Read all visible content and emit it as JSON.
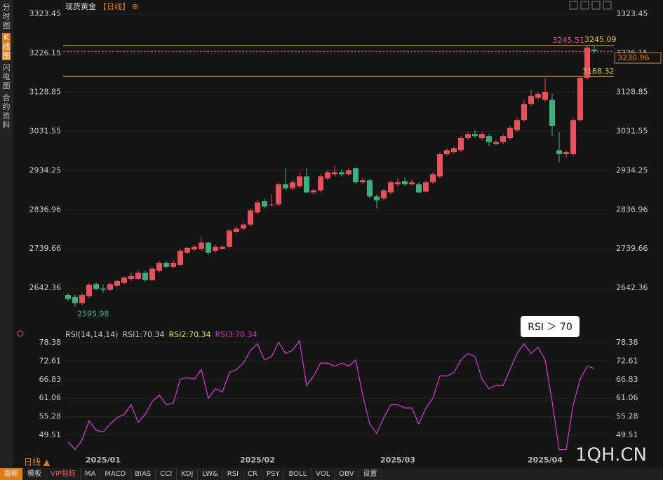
{
  "header": {
    "title": "现货黄金",
    "period": "【日线】",
    "icon": "⊕"
  },
  "sidebar": [
    "分时图",
    "K线图",
    "闪电图",
    "合约资料"
  ],
  "chart_data": [
    {
      "type": "candlestick",
      "categories": [
        null,
        null,
        null,
        null,
        null,
        "2025/01",
        null,
        null,
        null,
        null,
        null,
        null,
        null,
        null,
        null,
        null,
        null,
        null,
        null,
        null,
        null,
        null,
        null,
        null,
        null,
        null,
        null,
        "2025/02",
        null,
        null,
        null,
        null,
        null,
        null,
        null,
        null,
        null,
        null,
        null,
        null,
        null,
        null,
        null,
        null,
        null,
        null,
        null,
        "2025/03",
        null,
        null,
        null,
        null,
        null,
        null,
        null,
        null,
        null,
        null,
        null,
        null,
        null,
        null,
        null,
        null,
        null,
        null,
        null,
        null,
        "2025/04",
        null,
        null,
        null,
        null,
        null,
        null,
        null
      ],
      "open": [
        2625,
        2620,
        2605,
        2622,
        2652,
        2641,
        2638,
        2648,
        2655,
        2665,
        2665,
        2680,
        2662,
        2685,
        2705,
        2695,
        2700,
        2730,
        2738,
        2740,
        2755,
        2735,
        2740,
        2745,
        2782,
        2790,
        2800,
        2830,
        2858,
        2848,
        2850,
        2900,
        2890,
        2895,
        2920,
        2880,
        2885,
        2915,
        2925,
        2930,
        2925,
        2940,
        2905,
        2910,
        2870,
        2865,
        2880,
        2900,
        2908,
        2900,
        2900,
        2882,
        2905,
        2920,
        2975,
        2980,
        2985,
        3015,
        3025,
        3015,
        3020,
        3000,
        3005,
        3015,
        3035,
        3060,
        3100,
        3115,
        3110,
        3110,
        2985,
        2975,
        2975,
        3060,
        3165,
        3235
      ],
      "high": [
        2630,
        2625,
        2630,
        2655,
        2656,
        2650,
        2656,
        2663,
        2672,
        2680,
        2685,
        2685,
        2695,
        2710,
        2710,
        2712,
        2740,
        2745,
        2750,
        2770,
        2758,
        2750,
        2748,
        2790,
        2795,
        2805,
        2840,
        2862,
        2865,
        2875,
        2905,
        2940,
        2910,
        2930,
        2940,
        2890,
        2925,
        2935,
        2945,
        2938,
        2942,
        2942,
        2915,
        2915,
        2875,
        2890,
        2910,
        2915,
        2918,
        2912,
        2905,
        2910,
        2930,
        2980,
        2990,
        2995,
        3020,
        3030,
        3035,
        3030,
        3025,
        3010,
        3025,
        3045,
        3065,
        3110,
        3135,
        3130,
        3165,
        3125,
        3030,
        2985,
        3065,
        3168,
        3245.51,
        3245
      ],
      "low": [
        2610,
        2595.98,
        2600,
        2618,
        2636,
        2630,
        2635,
        2645,
        2652,
        2660,
        2662,
        2658,
        2660,
        2680,
        2690,
        2692,
        2698,
        2728,
        2735,
        2735,
        2725,
        2730,
        2738,
        2742,
        2778,
        2785,
        2795,
        2825,
        2840,
        2845,
        2845,
        2885,
        2886,
        2890,
        2878,
        2875,
        2880,
        2910,
        2920,
        2920,
        2920,
        2900,
        2900,
        2865,
        2840,
        2860,
        2875,
        2895,
        2895,
        2898,
        2878,
        2880,
        2900,
        2915,
        2970,
        2975,
        2980,
        3010,
        3015,
        3010,
        2995,
        2998,
        3000,
        3010,
        3030,
        3055,
        3095,
        3110,
        3105,
        3020,
        2955,
        2965,
        2970,
        3055,
        3160,
        3225
      ],
      "close": [
        2615,
        2605,
        2625,
        2650,
        2640,
        2638,
        2652,
        2660,
        2668,
        2672,
        2680,
        2662,
        2690,
        2705,
        2695,
        2705,
        2735,
        2742,
        2745,
        2755,
        2730,
        2745,
        2745,
        2785,
        2790,
        2800,
        2835,
        2855,
        2845,
        2850,
        2900,
        2890,
        2905,
        2920,
        2880,
        2885,
        2920,
        2930,
        2930,
        2925,
        2935,
        2905,
        2910,
        2870,
        2860,
        2885,
        2905,
        2905,
        2900,
        2905,
        2880,
        2905,
        2925,
        2975,
        2985,
        2990,
        3015,
        3025,
        3020,
        3025,
        3005,
        3005,
        3020,
        3040,
        3060,
        3100,
        3120,
        3125,
        3130,
        3045,
        2975,
        2980,
        3060,
        3165,
        3240,
        3231
      ],
      "up_color": "#e8505b",
      "down_color": "#3fae7f",
      "ylim": [
        2565.7,
        3349.6
      ],
      "yticks": [
        3323.45,
        3226.15,
        3128.85,
        3031.55,
        2934.25,
        2836.96,
        2739.66,
        2642.36
      ],
      "grid": true,
      "high_annotation": 3245.51,
      "low_annotation": 2595.98,
      "hlines": [
        3245.09,
        3168.32
      ],
      "hline_color": "#e8c84a",
      "last_price": 3230.96
    },
    {
      "type": "line",
      "legend": [
        "RSI(14,14,14)",
        "RSI1:70.34",
        "RSI2:70.34",
        "RSI3:70.34"
      ],
      "legend_colors": [
        "#c8c8c8",
        "#c8c8c8",
        "#e8d84a",
        "#c837c8"
      ],
      "values": [
        47.5,
        45,
        48,
        54,
        51,
        50.5,
        53,
        55,
        56,
        59,
        53.5,
        56,
        60,
        62,
        59,
        59.5,
        67,
        67.5,
        67,
        70,
        61,
        64,
        63,
        69,
        70,
        72,
        76,
        78,
        73,
        74,
        78.5,
        75,
        76,
        79,
        65,
        68,
        72,
        72,
        71,
        72,
        71,
        73,
        62,
        53,
        50,
        55,
        59,
        59,
        58,
        58,
        53,
        58,
        61,
        68,
        68,
        69,
        73,
        75,
        74,
        67,
        64,
        65,
        65,
        70,
        75,
        78,
        75,
        77,
        73,
        60,
        45,
        45,
        59,
        67,
        71,
        70.34
      ],
      "color": "#c837c8",
      "ylim": [
        42.07,
        80.35
      ],
      "yticks": [
        78.38,
        72.61,
        66.83,
        61.06,
        55.28,
        49.51
      ],
      "annotation": "RSI ＞ 70"
    }
  ],
  "watermark": "1QH.CN",
  "period_selector": "日线 ▲",
  "toolbar": [
    "指标",
    "模板",
    "VIP指标",
    "MA",
    "MACD",
    "BIAS",
    "CCI",
    "KDJ",
    "LW&",
    "RSI",
    "CR",
    "PSY",
    "BOLL",
    "VOL",
    "OBV",
    "设置"
  ]
}
